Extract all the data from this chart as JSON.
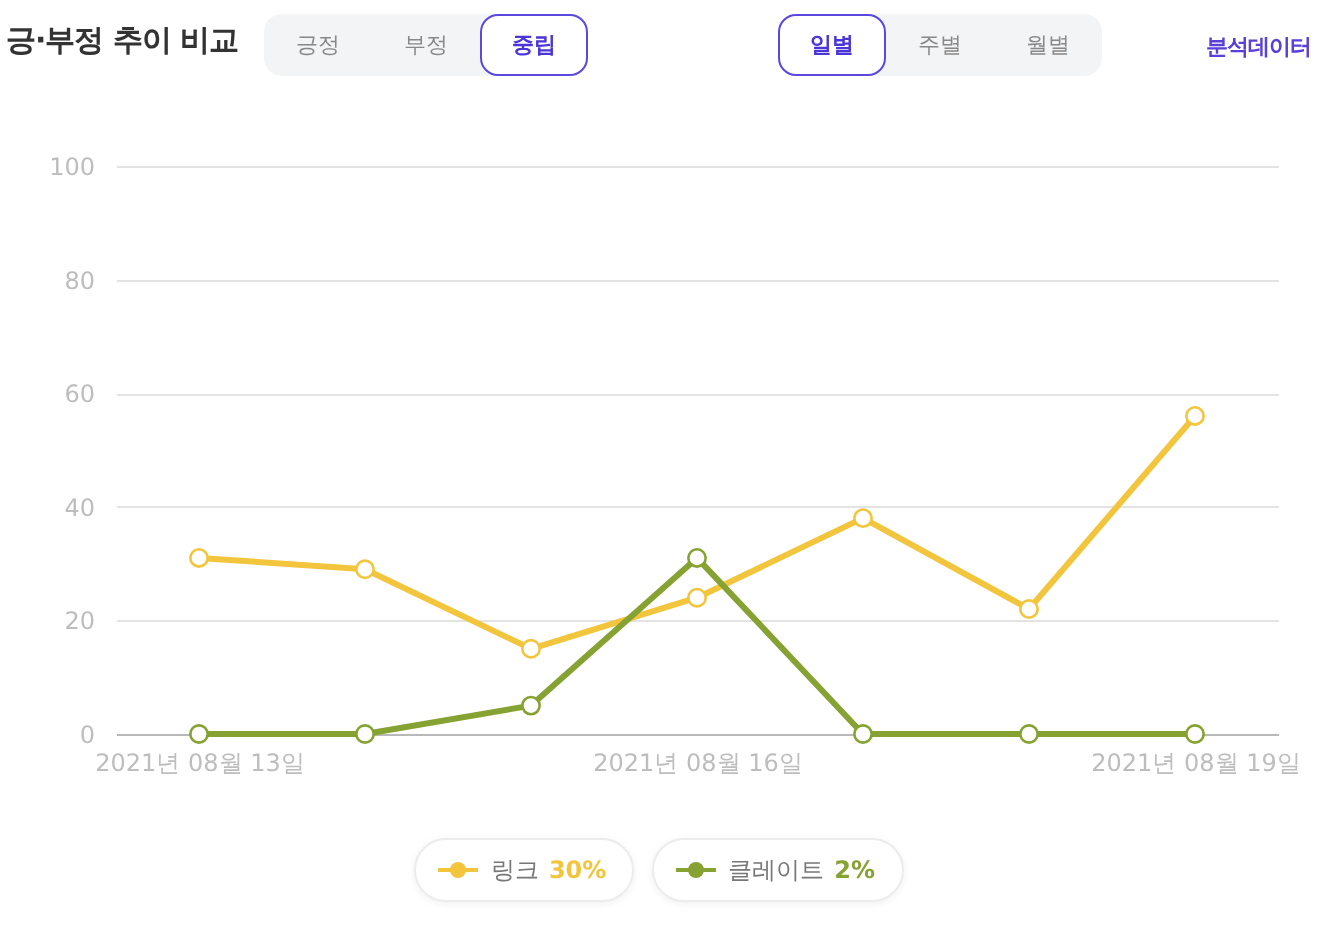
{
  "chart_data": {
    "type": "line",
    "title": "긍·부정 추이 비교",
    "annotations": [
      "긍정",
      "부정",
      "중립",
      "일별",
      "주별",
      "월별",
      "분석데이터"
    ],
    "categories": [
      "2021년 08월 13일",
      null,
      null,
      "2021년 08월 16일",
      null,
      null,
      "2021년 08월 19일"
    ],
    "series": [
      {
        "name": "링크 30%",
        "color": "#f2c53d",
        "values": [
          31,
          29,
          15,
          24,
          38,
          22,
          56
        ]
      },
      {
        "name": "클레이트 2%",
        "color": "#86a232",
        "values": [
          0,
          0,
          5,
          31,
          0,
          0,
          0
        ]
      }
    ],
    "ylim": [
      0,
      100
    ],
    "yticks": [
      0,
      20,
      40,
      60,
      80,
      100
    ],
    "grid": "y",
    "legend": "bottom",
    "marker": "circle",
    "line_style": "solid"
  }
}
